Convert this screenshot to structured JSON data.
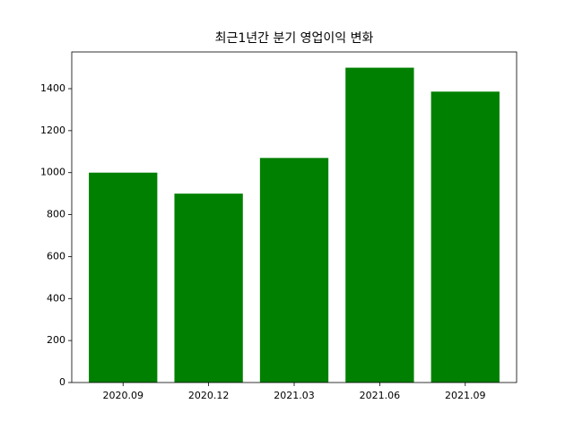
{
  "chart_data": {
    "type": "bar",
    "title": "최근1년간 분기 영업이익 변화",
    "categories": [
      "2020.09",
      "2020.12",
      "2021.03",
      "2021.06",
      "2021.09"
    ],
    "values": [
      1000,
      900,
      1070,
      1500,
      1386
    ],
    "color": "#008000",
    "ylim": [
      0,
      1575
    ],
    "yticks": [
      0,
      200,
      400,
      600,
      800,
      1000,
      1200,
      1400
    ],
    "grid": false
  }
}
